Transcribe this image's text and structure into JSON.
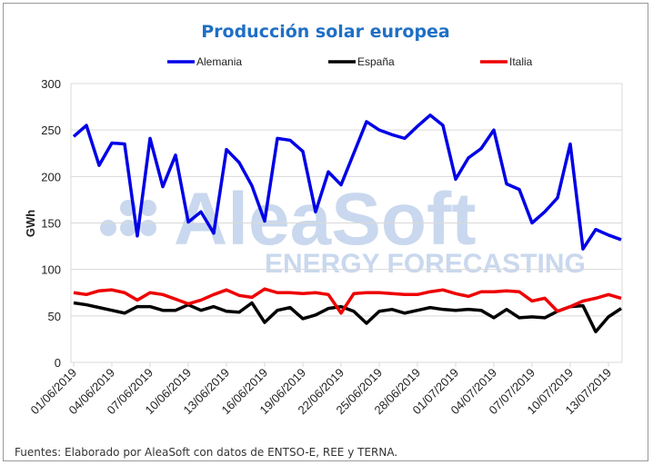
{
  "chart_data": {
    "type": "line",
    "title": "Producción solar europea",
    "ylabel": "GWh",
    "xlabel": "",
    "ylim": [
      0,
      300
    ],
    "yticks": [
      0,
      50,
      100,
      150,
      200,
      250,
      300
    ],
    "grid": true,
    "legend_position": "top",
    "x_start": "01/06/2019",
    "xtick_labels": [
      "01/06/2019",
      "04/06/2019",
      "07/06/2019",
      "10/06/2019",
      "13/06/2019",
      "16/06/2019",
      "19/06/2019",
      "22/06/2019",
      "25/06/2019",
      "28/06/2019",
      "01/07/2019",
      "04/07/2019",
      "07/07/2019",
      "10/07/2019",
      "13/07/2019"
    ],
    "series": [
      {
        "name": "Alemania",
        "color": "#0000e6",
        "values": [
          243,
          255,
          212,
          236,
          235,
          136,
          241,
          189,
          223,
          151,
          162,
          139,
          229,
          215,
          190,
          152,
          241,
          239,
          227,
          162,
          205,
          191,
          225,
          259,
          250,
          245,
          241,
          254,
          266,
          255,
          197,
          220,
          230,
          250,
          192,
          186,
          150,
          162,
          177,
          235,
          122,
          143,
          137,
          132
        ]
      },
      {
        "name": "España",
        "color": "#000000",
        "values": [
          64,
          62,
          59,
          56,
          53,
          60,
          60,
          56,
          56,
          62,
          56,
          60,
          55,
          54,
          64,
          43,
          56,
          59,
          47,
          51,
          58,
          60,
          55,
          42,
          55,
          57,
          53,
          56,
          59,
          57,
          56,
          57,
          56,
          48,
          57,
          48,
          49,
          48,
          55,
          60,
          61,
          33,
          49,
          58
        ]
      },
      {
        "name": "Italia",
        "color": "#ee0000",
        "values": [
          75,
          73,
          77,
          78,
          75,
          67,
          75,
          73,
          68,
          63,
          67,
          73,
          78,
          72,
          70,
          79,
          75,
          75,
          74,
          75,
          73,
          53,
          74,
          75,
          75,
          74,
          73,
          73,
          76,
          78,
          74,
          71,
          76,
          76,
          77,
          76,
          66,
          69,
          55,
          60,
          66,
          69,
          73,
          69
        ]
      }
    ]
  },
  "watermark": {
    "brand": "AleaSoft",
    "tagline": "ENERGY FORECASTING",
    "color": "#c9d8ee"
  },
  "source": "Fuentes: Elaborado por AleaSoft con datos de ENTSO-E, REE y TERNA."
}
